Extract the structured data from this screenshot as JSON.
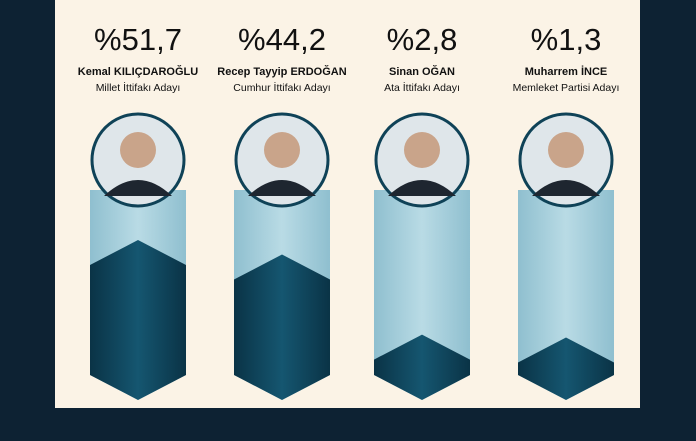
{
  "chart_data": {
    "type": "bar",
    "categories": [
      "Kemal KILIÇDAROĞLU",
      "Recep Tayyip ERDOĞAN",
      "Sinan OĞAN",
      "Muharrem İNCE"
    ],
    "subtitles": [
      "Millet İttifakı Adayı",
      "Cumhur İttifakı Adayı",
      "Ata İttifakı Adayı",
      "Memleket Partisi Adayı"
    ],
    "values": [
      51.7,
      44.2,
      2.8,
      1.3
    ],
    "value_labels": [
      "%51,7",
      "%44,2",
      "%2,8",
      "%1,3"
    ],
    "color": "#0f4257"
  }
}
